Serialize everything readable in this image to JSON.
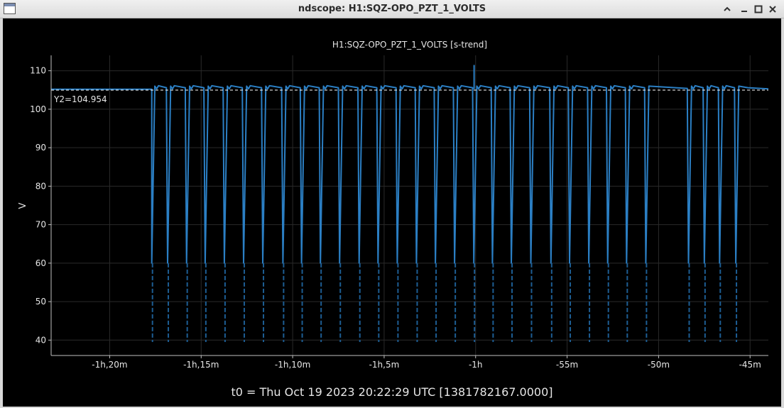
{
  "window": {
    "title": "ndscope: H1:SQZ-OPO_PZT_1_VOLTS"
  },
  "icons": {
    "app": "window-app-icon",
    "minimize": "chevron-up-icon",
    "restore": "minimize-icon",
    "maximize": "maximize-icon",
    "close": "close-icon"
  },
  "t0_label": "t0 = Thu Oct 19 2023 20:22:29 UTC [1381782167.0000]",
  "colors": {
    "trace": "#2b7fc4",
    "trace_dark": "#1d5d93",
    "axis": "#bfbfbf",
    "grid": "#2a2a2a",
    "cursor": "#ffffff"
  },
  "chart_data": {
    "type": "line",
    "title": "H1:SQZ-OPO_PZT_1_VOLTS [s-trend]",
    "xlabel": "",
    "ylabel": "V",
    "xlim": [
      -4992,
      -2640
    ],
    "ylim": [
      36,
      114
    ],
    "x_ticks": [
      {
        "value": -4800,
        "label": "-1h,20m"
      },
      {
        "value": -4500,
        "label": "-1h,15m"
      },
      {
        "value": -4200,
        "label": "-1h,10m"
      },
      {
        "value": -3900,
        "label": "-1h,5m"
      },
      {
        "value": -3600,
        "label": "-1h"
      },
      {
        "value": -3300,
        "label": "-55m"
      },
      {
        "value": -3000,
        "label": "-50m"
      },
      {
        "value": -2700,
        "label": "-45m"
      }
    ],
    "y_ticks": [
      40,
      50,
      60,
      70,
      80,
      90,
      100,
      110
    ],
    "grid": true,
    "cursor": {
      "label": "Y2=104.954",
      "value": 104.954
    },
    "baseline": 105.2,
    "peak": 106.0,
    "spike_min": 39.5,
    "series": [
      {
        "drop_times": [
          -4662,
          -4610,
          -4548,
          -4487,
          -4424,
          -4361,
          -4298,
          -4232,
          -4171,
          -4109,
          -4046,
          -3982,
          -3920,
          -3857,
          -3794,
          -3732,
          -3669,
          -3606,
          -3545,
          -3483,
          -3419,
          -3353,
          -3292,
          -3229,
          -3167,
          -3105,
          -3042,
          -2902,
          -2850,
          -2800,
          -2747
        ]
      }
    ]
  }
}
